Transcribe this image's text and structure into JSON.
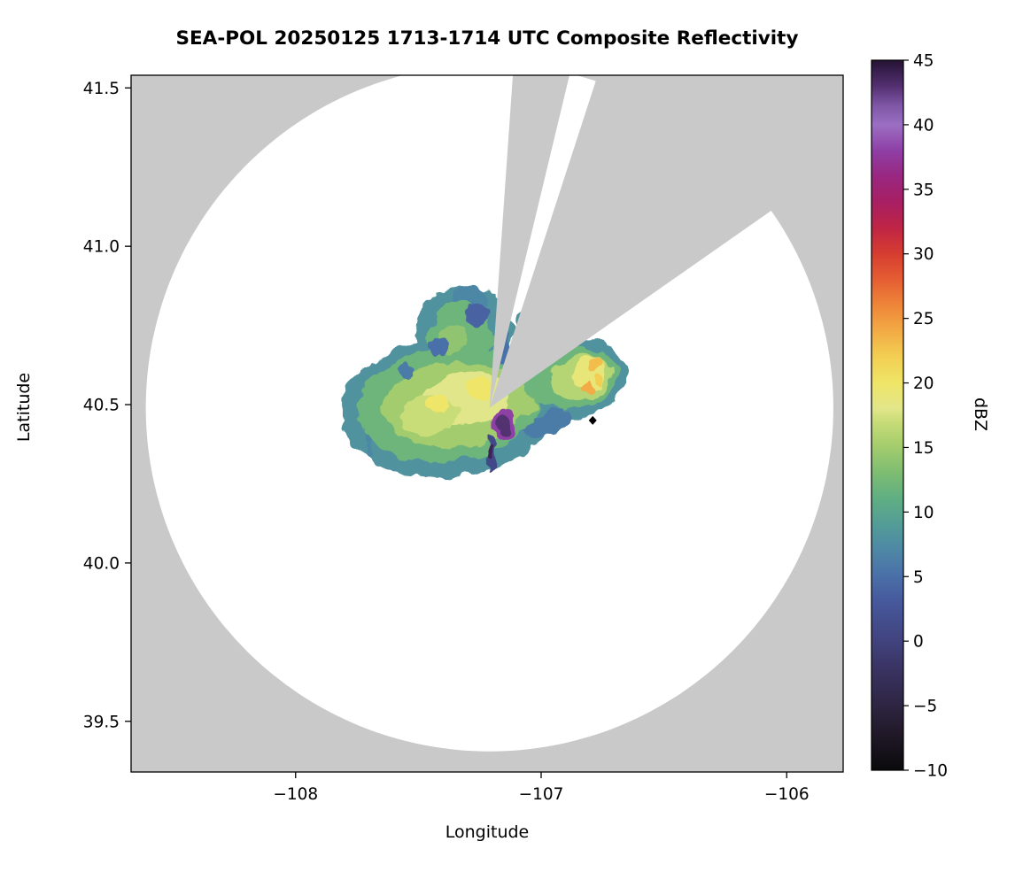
{
  "figure": {
    "title": "SEA-POL 20250125 1713-1714 UTC Composite Reflectivity"
  },
  "chart_data": {
    "type": "heatmap",
    "title": "SEA-POL 20250125 1713-1714 UTC Composite Reflectivity",
    "xlabel": "Longitude",
    "ylabel": "Latitude",
    "xlim": [
      -108.67,
      -105.77
    ],
    "ylim": [
      39.34,
      41.54
    ],
    "grid": false,
    "no_data_color": "#c9c9c9",
    "coverage_color": "#ffffff",
    "xticks": [
      {
        "value": -108,
        "label": "−108"
      },
      {
        "value": -107,
        "label": "−107"
      },
      {
        "value": -106,
        "label": "−106"
      }
    ],
    "yticks": [
      {
        "value": 39.5,
        "label": "39.5"
      },
      {
        "value": 40.0,
        "label": "40.0"
      },
      {
        "value": 40.5,
        "label": "40.5"
      },
      {
        "value": 41.0,
        "label": "41.0"
      },
      {
        "value": 41.5,
        "label": "41.5"
      }
    ],
    "colorbar": {
      "label": "dBZ",
      "min": -10,
      "max": 45,
      "ticks": [
        {
          "value": 45,
          "label": "45"
        },
        {
          "value": 40,
          "label": "40"
        },
        {
          "value": 35,
          "label": "35"
        },
        {
          "value": 30,
          "label": "30"
        },
        {
          "value": 25,
          "label": "25"
        },
        {
          "value": 20,
          "label": "20"
        },
        {
          "value": 15,
          "label": "15"
        },
        {
          "value": 10,
          "label": "10"
        },
        {
          "value": 5,
          "label": "5"
        },
        {
          "value": 0,
          "label": "0"
        },
        {
          "value": -5,
          "label": "−5"
        },
        {
          "value": -10,
          "label": "−10"
        }
      ],
      "stops": [
        [
          -10,
          "#0a0a0c"
        ],
        [
          -7,
          "#221a2a"
        ],
        [
          -5,
          "#2e2542"
        ],
        [
          -2,
          "#3a3464"
        ],
        [
          0,
          "#41437e"
        ],
        [
          3,
          "#46589b"
        ],
        [
          5,
          "#4a6fa8"
        ],
        [
          7,
          "#4e87a6"
        ],
        [
          9,
          "#539c97"
        ],
        [
          11,
          "#5fae83"
        ],
        [
          13,
          "#7dbc72"
        ],
        [
          15,
          "#a2cc6d"
        ],
        [
          17,
          "#c8dc78"
        ],
        [
          18,
          "#e2e68a"
        ],
        [
          20,
          "#efe567"
        ],
        [
          22,
          "#f2cf52"
        ],
        [
          24,
          "#f2ab45"
        ],
        [
          26,
          "#ee8639"
        ],
        [
          28,
          "#e55e33"
        ],
        [
          30,
          "#d63d30"
        ],
        [
          32,
          "#bf2545"
        ],
        [
          34,
          "#a81f63"
        ],
        [
          36,
          "#992781"
        ],
        [
          38,
          "#8e3fa5"
        ],
        [
          40,
          "#9b6fc3"
        ],
        [
          41.5,
          "#7e56a5"
        ],
        [
          43,
          "#533071"
        ],
        [
          45,
          "#241233"
        ]
      ]
    },
    "radar": {
      "center_lon": -107.21,
      "center_lat": 40.49,
      "range_deg_lon": 1.4,
      "range_deg_lat": 1.085,
      "blocked_sectors_azimuth_deg": [
        [
          4,
          13.5
        ],
        [
          18,
          55
        ]
      ]
    },
    "marker": {
      "lon": -106.79,
      "lat": 40.45,
      "shape": "diamond",
      "color": "#000000"
    },
    "echoes": [
      {
        "lon": -107.38,
        "lat": 40.49,
        "rx": 0.44,
        "ry": 0.22,
        "rot": -5,
        "dbz": 8
      },
      {
        "lon": -107.31,
        "lat": 40.73,
        "rx": 0.2,
        "ry": 0.145,
        "rot": 10,
        "dbz": 8
      },
      {
        "lon": -106.88,
        "lat": 40.58,
        "rx": 0.235,
        "ry": 0.125,
        "rot": -10,
        "dbz": 8
      },
      {
        "lon": -107.73,
        "lat": 40.46,
        "rx": 0.075,
        "ry": 0.035,
        "rot": 0,
        "dbz": 8
      },
      {
        "lon": -107.7,
        "lat": 40.38,
        "rx": 0.02,
        "ry": 0.05,
        "rot": 0,
        "dbz": 7
      },
      {
        "lon": -107.6,
        "lat": 40.36,
        "rx": 0.1,
        "ry": 0.045,
        "rot": 10,
        "dbz": 8
      },
      {
        "lon": -107.32,
        "lat": 40.315,
        "rx": 0.09,
        "ry": 0.04,
        "rot": 0,
        "dbz": 8
      },
      {
        "lon": -107.29,
        "lat": 40.845,
        "rx": 0.07,
        "ry": 0.035,
        "rot": 0,
        "dbz": 7
      },
      {
        "lon": -107.17,
        "lat": 40.47,
        "rx": 0.1,
        "ry": 0.05,
        "rot": 0,
        "dbz": 10
      },
      {
        "lon": -106.97,
        "lat": 40.44,
        "rx": 0.1,
        "ry": 0.035,
        "rot": -20,
        "dbz": 6
      },
      {
        "lon": -107.05,
        "lat": 40.72,
        "rx": 0.055,
        "ry": 0.1,
        "rot": 8,
        "dbz": 8
      },
      {
        "lon": -107.38,
        "lat": 40.5,
        "rx": 0.37,
        "ry": 0.18,
        "rot": -5,
        "dbz": 12
      },
      {
        "lon": -107.33,
        "lat": 40.72,
        "rx": 0.13,
        "ry": 0.1,
        "rot": 10,
        "dbz": 12
      },
      {
        "lon": -106.87,
        "lat": 40.58,
        "rx": 0.18,
        "ry": 0.095,
        "rot": -10,
        "dbz": 12
      },
      {
        "lon": -107.35,
        "lat": 40.5,
        "rx": 0.29,
        "ry": 0.135,
        "rot": -5,
        "dbz": 15
      },
      {
        "lon": -106.84,
        "lat": 40.585,
        "rx": 0.125,
        "ry": 0.07,
        "rot": -10,
        "dbz": 16
      },
      {
        "lon": -107.36,
        "lat": 40.71,
        "rx": 0.07,
        "ry": 0.05,
        "rot": 0,
        "dbz": 14
      },
      {
        "lon": -107.3,
        "lat": 40.52,
        "rx": 0.17,
        "ry": 0.085,
        "rot": 0,
        "dbz": 18
      },
      {
        "lon": -107.46,
        "lat": 40.465,
        "rx": 0.12,
        "ry": 0.06,
        "rot": 0,
        "dbz": 17
      },
      {
        "lon": -107.08,
        "lat": 40.5,
        "rx": 0.06,
        "ry": 0.04,
        "rot": 0,
        "dbz": 15
      },
      {
        "lon": -106.8,
        "lat": 40.6,
        "rx": 0.07,
        "ry": 0.05,
        "rot": 0,
        "dbz": 19
      },
      {
        "lon": -107.25,
        "lat": 40.55,
        "rx": 0.05,
        "ry": 0.03,
        "rot": 0,
        "dbz": 20
      },
      {
        "lon": -107.42,
        "lat": 40.5,
        "rx": 0.04,
        "ry": 0.025,
        "rot": 0,
        "dbz": 20
      },
      {
        "lon": -106.78,
        "lat": 40.625,
        "rx": 0.03,
        "ry": 0.022,
        "rot": 0,
        "dbz": 23
      },
      {
        "lon": -106.81,
        "lat": 40.55,
        "rx": 0.022,
        "ry": 0.018,
        "rot": 0,
        "dbz": 24
      },
      {
        "lon": -106.76,
        "lat": 40.58,
        "rx": 0.018,
        "ry": 0.015,
        "rot": 0,
        "dbz": 22
      },
      {
        "lon": -107.26,
        "lat": 40.79,
        "rx": 0.045,
        "ry": 0.035,
        "rot": 0,
        "dbz": 4
      },
      {
        "lon": -107.42,
        "lat": 40.68,
        "rx": 0.035,
        "ry": 0.028,
        "rot": 0,
        "dbz": 5
      },
      {
        "lon": -107.15,
        "lat": 40.68,
        "rx": 0.03,
        "ry": 0.05,
        "rot": 0,
        "dbz": 5
      },
      {
        "lon": -107.55,
        "lat": 40.61,
        "rx": 0.03,
        "ry": 0.025,
        "rot": 0,
        "dbz": 6
      },
      {
        "lon": -107.205,
        "lat": 40.345,
        "rx": 0.018,
        "ry": 0.06,
        "rot": 0,
        "dbz": 1
      },
      {
        "lon": -107.21,
        "lat": 40.35,
        "rx": 0.014,
        "ry": 0.02,
        "rot": 0,
        "dbz": 44
      },
      {
        "lon": -107.145,
        "lat": 40.435,
        "rx": 0.045,
        "ry": 0.055,
        "rot": 0,
        "dbz": 38
      },
      {
        "lon": -107.145,
        "lat": 40.435,
        "rx": 0.028,
        "ry": 0.038,
        "rot": 0,
        "dbz": 43
      }
    ]
  }
}
